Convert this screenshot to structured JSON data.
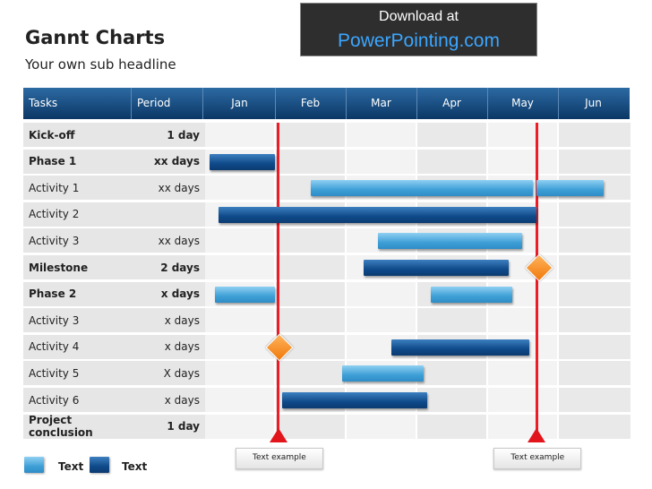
{
  "header": {
    "title": "Gannt Charts",
    "subtitle": "Your own sub headline"
  },
  "banner": {
    "line1": "Download at",
    "line2": "PowerPointing.com"
  },
  "table": {
    "columns": [
      "Tasks",
      "Period",
      "Jan",
      "Feb",
      "Mar",
      "Apr",
      "May",
      "Jun"
    ],
    "rows": [
      {
        "task": "Kick-off",
        "period": "1 day",
        "bold": true
      },
      {
        "task": "Phase 1",
        "period": "xx days",
        "bold": true
      },
      {
        "task": "Activity  1",
        "period": "xx days",
        "bold": false
      },
      {
        "task": "Activity  2",
        "period": "",
        "bold": false
      },
      {
        "task": "Activity 3",
        "period": "xx days",
        "bold": false
      },
      {
        "task": "Milestone",
        "period": "2 days",
        "bold": true
      },
      {
        "task": "Phase 2",
        "period": "x days",
        "bold": true
      },
      {
        "task": "Activity  3",
        "period": "x days",
        "bold": false
      },
      {
        "task": "Activity  4",
        "period": "x days",
        "bold": false
      },
      {
        "task": "Activity  5",
        "period": "X days",
        "bold": false
      },
      {
        "task": "Activity  6",
        "period": "x days",
        "bold": false
      },
      {
        "task": "Project conclusion",
        "period": "1 day",
        "bold": true
      }
    ]
  },
  "bars": [
    {
      "row": 1,
      "start": 0.08,
      "end": 1.0,
      "style": "dark"
    },
    {
      "row": 2,
      "start": 1.5,
      "end": 4.65,
      "style": "light"
    },
    {
      "row": 2,
      "start": 4.7,
      "end": 5.65,
      "style": "light"
    },
    {
      "row": 3,
      "start": 0.2,
      "end": 4.7,
      "style": "dark"
    },
    {
      "row": 4,
      "start": 2.45,
      "end": 4.5,
      "style": "light"
    },
    {
      "row": 5,
      "start": 2.25,
      "end": 4.3,
      "style": "dark"
    },
    {
      "row": 6,
      "start": 0.15,
      "end": 1.0,
      "style": "light"
    },
    {
      "row": 6,
      "start": 3.2,
      "end": 4.35,
      "style": "light"
    },
    {
      "row": 8,
      "start": 2.65,
      "end": 4.6,
      "style": "dark"
    },
    {
      "row": 9,
      "start": 1.95,
      "end": 3.1,
      "style": "light"
    },
    {
      "row": 10,
      "start": 1.1,
      "end": 3.15,
      "style": "dark"
    }
  ],
  "milestones": [
    {
      "row": 5,
      "month_pos": 4.72
    },
    {
      "row": 8,
      "month_pos": 1.05
    }
  ],
  "markers": [
    {
      "month_pos": 1.05,
      "label": "Text example"
    },
    {
      "month_pos": 4.7,
      "label": "Text example"
    }
  ],
  "legend": [
    {
      "style": "light",
      "label": "Text"
    },
    {
      "style": "dark",
      "label": "Text"
    }
  ],
  "colors": {
    "header_dark": "#0b3765",
    "bar_light": "#3e9fd6",
    "bar_dark": "#0f4a8a",
    "milestone_line": "#ee1c24",
    "diamond": "#f07a0c"
  }
}
